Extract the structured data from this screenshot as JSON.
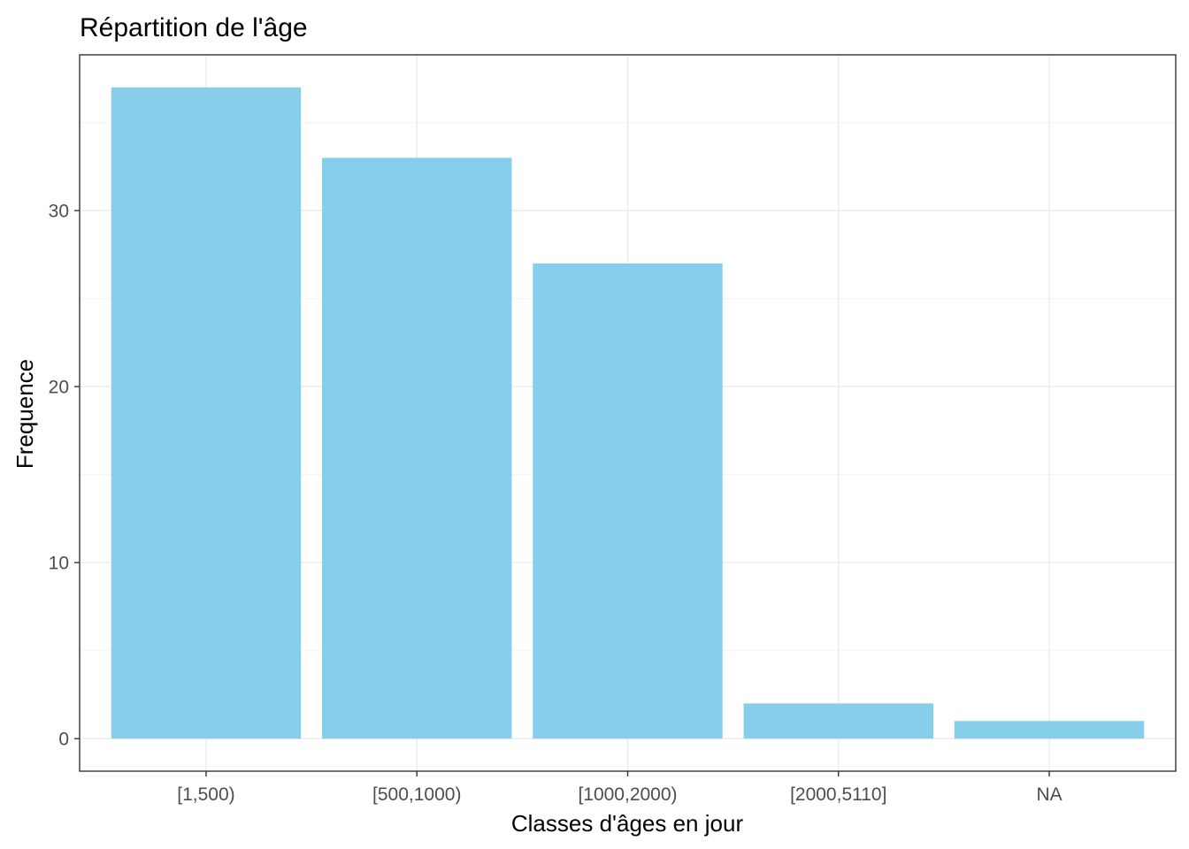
{
  "chart_data": {
    "type": "bar",
    "title": "Répartition de l'âge",
    "xlabel": "Classes d'âges en jour",
    "ylabel": "Frequence",
    "categories": [
      "[1,500)",
      "[500,1000)",
      "[1000,2000)",
      "[2000,5110]",
      "NA"
    ],
    "values": [
      37,
      33,
      27,
      2,
      1
    ],
    "ylim": [
      -1.85,
      38.85
    ],
    "y_ticks": [
      0,
      10,
      20,
      30
    ],
    "y_tick_labels": [
      "0",
      "10",
      "20",
      "30"
    ],
    "grid": true,
    "legend": "none",
    "colors": {
      "bar": "#87CEEB",
      "grid_major": "#ebebeb",
      "grid_minor": "#f5f5f5",
      "panel_border": "#333333",
      "tick_text": "#4d4d4d"
    }
  }
}
